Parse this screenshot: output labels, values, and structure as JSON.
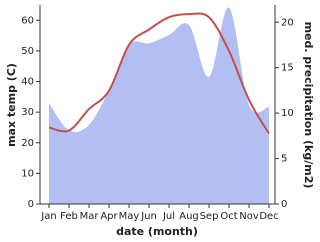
{
  "chart_data": {
    "type": "line",
    "x_label": "date (month)",
    "y_label": "max temp (C)",
    "y2_label": "med. precipitation (kg/m2)",
    "categories": [
      "Jan",
      "Feb",
      "Mar",
      "Apr",
      "May",
      "Jun",
      "Jul",
      "Aug",
      "Sep",
      "Oct",
      "Nov",
      "Dec"
    ],
    "series": [
      {
        "name": "max temp",
        "type": "line",
        "color": "#c0504d",
        "axis": "y",
        "values": [
          25,
          24,
          31,
          37,
          52,
          57,
          61,
          62,
          61,
          50,
          34,
          23
        ]
      },
      {
        "name": "med. precipitation",
        "type": "area",
        "color": "#b3bff2",
        "axis": "y2",
        "values": [
          11.1,
          8.1,
          8.7,
          12.5,
          17.5,
          17.7,
          18.6,
          19.7,
          14,
          21.6,
          10.9,
          10.7
        ]
      }
    ],
    "ylim": [
      0,
      65
    ],
    "yticks": [
      0,
      10,
      20,
      30,
      40,
      50,
      60
    ],
    "y2lim": [
      0,
      21.9
    ],
    "y2ticks": [
      0,
      5,
      10,
      15,
      20
    ]
  }
}
